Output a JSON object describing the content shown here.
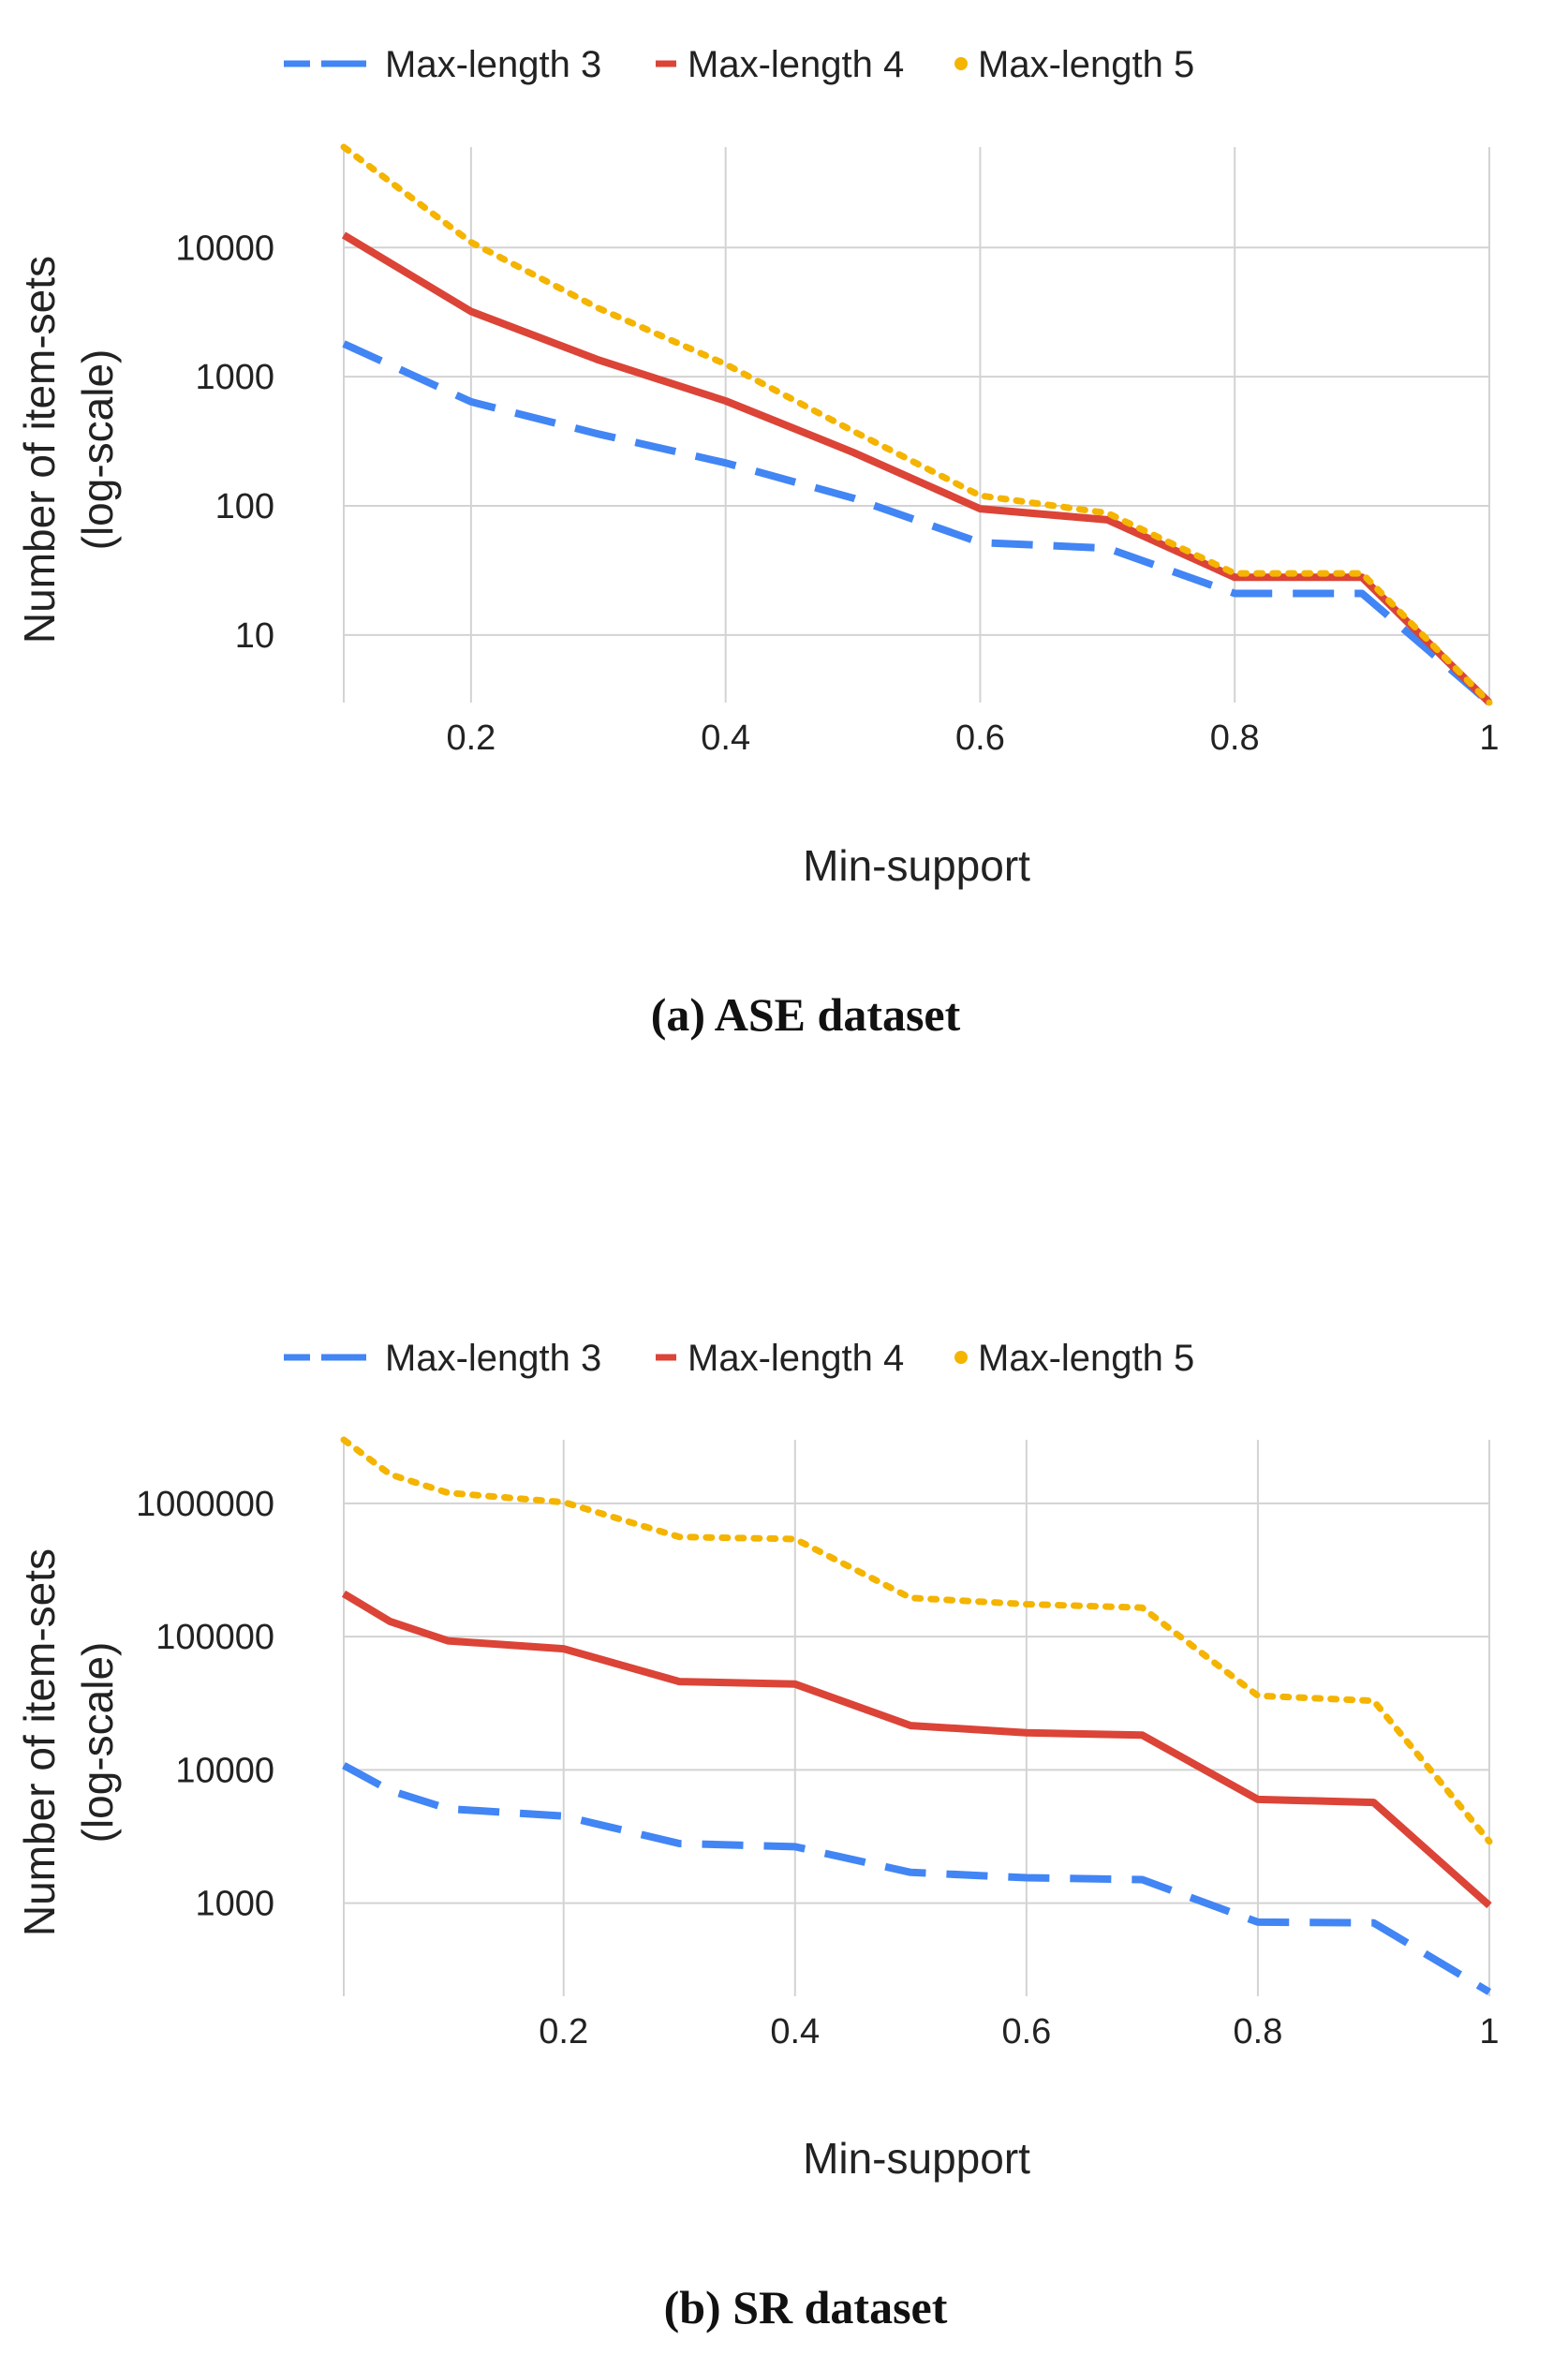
{
  "chart_data": [
    {
      "type": "line",
      "caption": "(a) ASE dataset",
      "xlabel": "Min-support",
      "ylabel": "Number of item-sets",
      "ylabel_sub": "(log-scale)",
      "yscale": "log",
      "xlim": [
        0.1,
        1
      ],
      "ylim": [
        3,
        60000
      ],
      "x_ticks": [
        0.2,
        0.4,
        0.6,
        0.8,
        1
      ],
      "x_tick_labels": [
        "0.2",
        "0.4",
        "0.6",
        "0.8",
        "1"
      ],
      "y_ticks": [
        10,
        100,
        1000,
        10000
      ],
      "y_tick_labels": [
        "10",
        "100",
        "1000",
        "10000"
      ],
      "legend_position": "top",
      "grid": true,
      "series": [
        {
          "name": "Max-length 3",
          "style": "dashed",
          "color": "#4285f4",
          "x": [
            0.1,
            0.2,
            0.3,
            0.4,
            0.5,
            0.6,
            0.7,
            0.8,
            0.9,
            1
          ],
          "values": [
            1800,
            640,
            360,
            215,
            115,
            52,
            47,
            21,
            21,
            3
          ]
        },
        {
          "name": "Max-length 4",
          "style": "solid",
          "color": "#db4437",
          "x": [
            0.1,
            0.2,
            0.3,
            0.4,
            0.5,
            0.6,
            0.7,
            0.8,
            0.9,
            1
          ],
          "values": [
            12500,
            3200,
            1350,
            650,
            260,
            95,
            78,
            28,
            28,
            3
          ]
        },
        {
          "name": "Max-length 5",
          "style": "dotted",
          "color": "#f4b400",
          "x": [
            0.1,
            0.2,
            0.3,
            0.4,
            0.5,
            0.6,
            0.7,
            0.8,
            0.9,
            1
          ],
          "values": [
            60000,
            11000,
            3400,
            1250,
            380,
            120,
            88,
            30,
            30,
            3
          ]
        }
      ]
    },
    {
      "type": "line",
      "caption": "(b) SR dataset",
      "xlabel": "Min-support",
      "ylabel": "Number of item-sets",
      "ylabel_sub": "(log-scale)",
      "yscale": "log",
      "xlim": [
        0.01,
        1
      ],
      "ylim": [
        200,
        3000000
      ],
      "x_ticks": [
        0.2,
        0.4,
        0.6,
        0.8,
        1
      ],
      "x_tick_labels": [
        "0.2",
        "0.4",
        "0.6",
        "0.8",
        "1"
      ],
      "y_ticks": [
        1000,
        10000,
        100000,
        1000000
      ],
      "y_tick_labels": [
        "1000",
        "10000",
        "100000",
        "1000000"
      ],
      "legend_position": "top",
      "grid": true,
      "series": [
        {
          "name": "Max-length 3",
          "style": "dashed",
          "color": "#4285f4",
          "x": [
            0.01,
            0.05,
            0.1,
            0.2,
            0.3,
            0.4,
            0.5,
            0.6,
            0.7,
            0.8,
            0.9,
            1
          ],
          "values": [
            10800,
            7000,
            5100,
            4500,
            2800,
            2650,
            1700,
            1550,
            1500,
            720,
            710,
            215
          ]
        },
        {
          "name": "Max-length 4",
          "style": "solid",
          "color": "#db4437",
          "x": [
            0.01,
            0.05,
            0.1,
            0.2,
            0.3,
            0.4,
            0.5,
            0.6,
            0.7,
            0.8,
            0.9,
            1
          ],
          "values": [
            210000,
            130000,
            93000,
            81000,
            46000,
            44000,
            21500,
            19000,
            18200,
            6000,
            5700,
            960
          ]
        },
        {
          "name": "Max-length 5",
          "style": "dotted",
          "color": "#f4b400",
          "x": [
            0.01,
            0.05,
            0.1,
            0.2,
            0.3,
            0.4,
            0.5,
            0.6,
            0.7,
            0.8,
            0.9,
            1
          ],
          "values": [
            3000000,
            1650000,
            1200000,
            1020000,
            560000,
            540000,
            195000,
            175000,
            165000,
            36000,
            33000,
            2900
          ]
        }
      ]
    }
  ]
}
